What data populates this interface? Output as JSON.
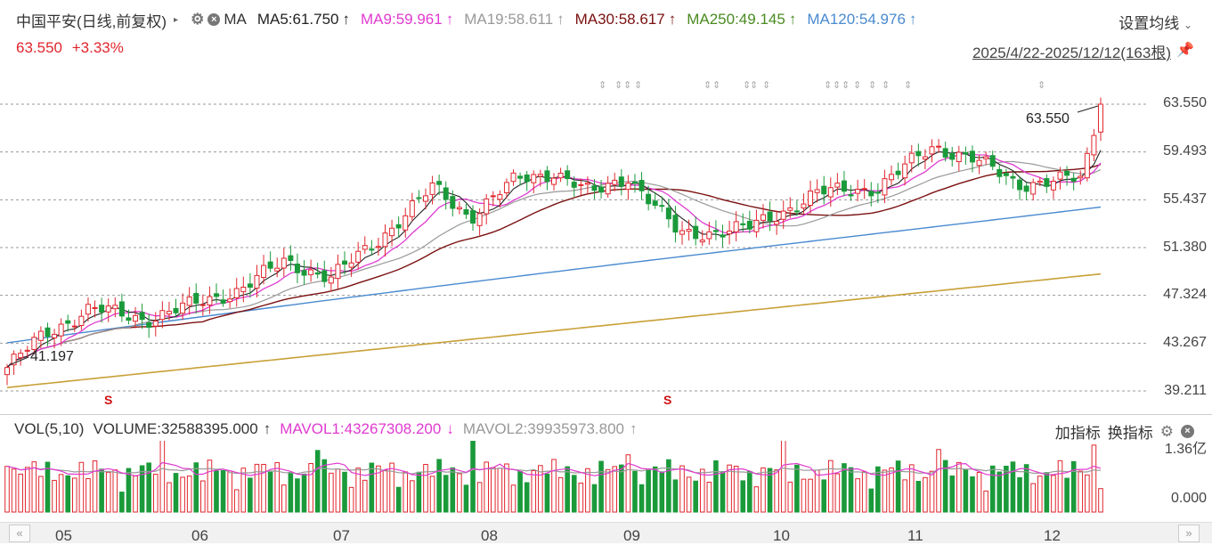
{
  "header": {
    "stock_name": "中国平安(日线,前复权)",
    "ma_label": "MA",
    "ma5": "MA5:61.750",
    "ma9": "MA9:59.961",
    "ma19": "MA19:58.611",
    "ma30": "MA30:58.617",
    "ma250": "MA250:49.145",
    "ma120": "MA120:54.976",
    "settings_label": "设置均线",
    "price": "63.550",
    "change": "+3.33%",
    "date_range": "2025/4/22-2025/12/12(163根)"
  },
  "colors": {
    "ma5": "#222222",
    "ma9": "#e03ad0",
    "ma19": "#999999",
    "ma30": "#7a1010",
    "ma250": "#c8a038",
    "ma120": "#4a8ad0",
    "up": "#e0262e",
    "down": "#1a9a3a"
  },
  "price_axis": [
    "63.550",
    "59.493",
    "55.437",
    "51.380",
    "47.324",
    "43.267",
    "39.211"
  ],
  "annotations": {
    "high": "63.550",
    "low": "41.197"
  },
  "volume": {
    "title": "VOL(5,10)",
    "volume": "VOLUME:32588395.000",
    "mavol1": "MAVOL1:43267308.200",
    "mavol2": "MAVOL2:39935973.800",
    "add_indicator": "加指标",
    "switch_indicator": "换指标",
    "axis_top": "1.36亿",
    "axis_bottom": "0.000"
  },
  "months": [
    "05",
    "06",
    "07",
    "08",
    "09",
    "10",
    "11",
    "12"
  ],
  "chart_data": {
    "type": "candlestick",
    "ylim": [
      39.211,
      63.55
    ],
    "start_price": 41.2,
    "end_price": 63.55,
    "n_bars": 163,
    "ma_endpoints": {
      "MA5": 61.75,
      "MA9": 59.961,
      "MA19": 58.611,
      "MA30": 58.617,
      "MA250": 49.145,
      "MA120": 54.976
    }
  }
}
